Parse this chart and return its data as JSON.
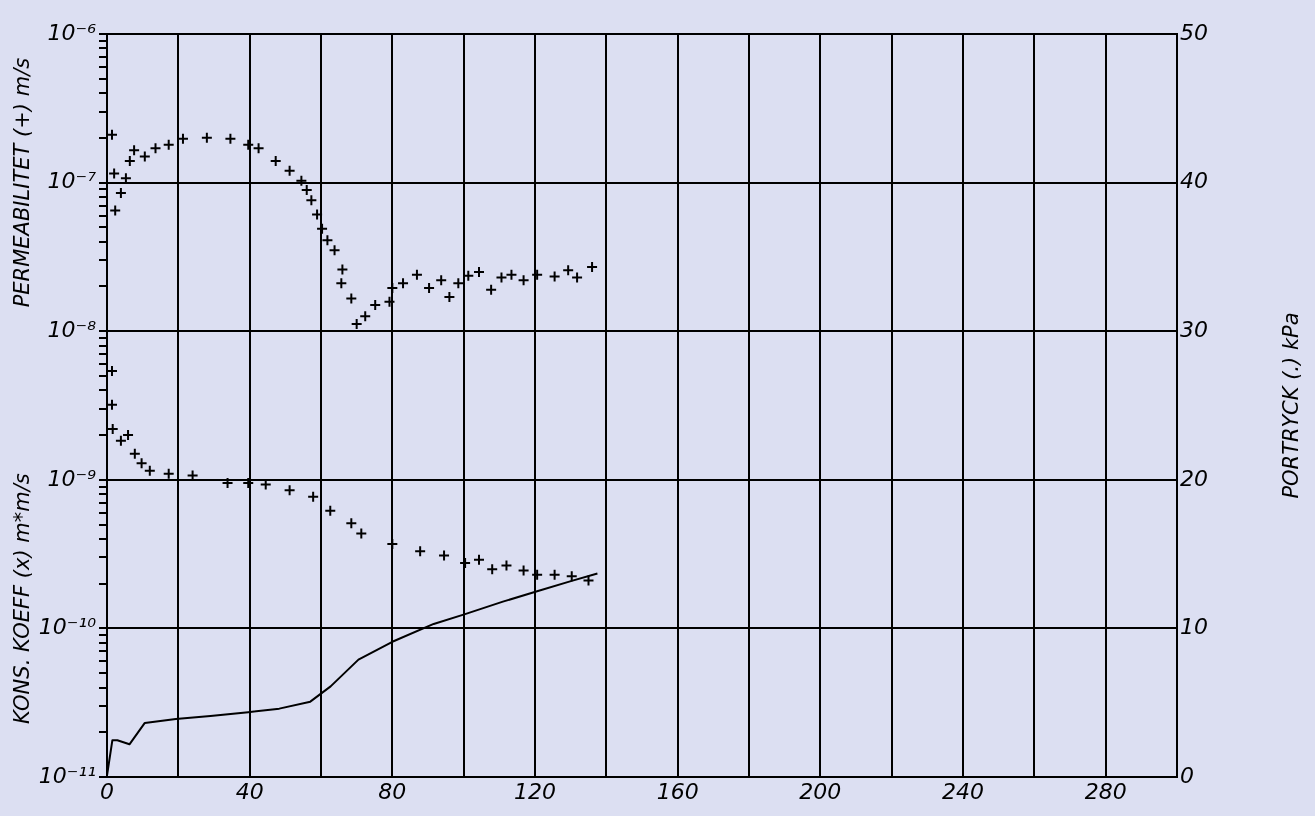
{
  "chart_data": {
    "type": "scatter",
    "ylabel": "KONS. KOEFF (x) m*m/s",
    "y2label": "PORTRYCK (.) kPa",
    "annotations": [
      "PERMEABILITET (+) m/s"
    ],
    "log": "y",
    "grid": true,
    "marker": "cross",
    "xlim": [
      0,
      300
    ],
    "xticks": [
      0,
      {
        "value": 20,
        "label": null
      },
      40,
      {
        "value": 60,
        "label": null
      },
      80,
      {
        "value": 100,
        "label": null
      },
      120,
      {
        "value": 140,
        "label": null
      },
      160,
      {
        "value": 180,
        "label": null
      },
      200,
      {
        "value": 220,
        "label": null
      },
      240,
      {
        "value": 260,
        "label": null
      },
      280,
      {
        "value": 300,
        "label": null
      }
    ],
    "ylim": [
      1e-11,
      1e-06
    ],
    "yticks": [
      {
        "value": 1e-11,
        "label": "10⁻¹¹"
      },
      {
        "value": 2e-11,
        "label": null
      },
      {
        "value": 3e-11,
        "label": null
      },
      {
        "value": 4e-11,
        "label": null
      },
      {
        "value": 5e-11,
        "label": null
      },
      {
        "value": 6e-11,
        "label": null
      },
      {
        "value": 7e-11,
        "label": null
      },
      {
        "value": 8e-11,
        "label": null
      },
      {
        "value": 9e-11,
        "label": null
      },
      {
        "value": 1e-10,
        "label": "10⁻¹⁰"
      },
      {
        "value": 2e-10,
        "label": null
      },
      {
        "value": 3e-10,
        "label": null
      },
      {
        "value": 4e-10,
        "label": null
      },
      {
        "value": 5e-10,
        "label": null
      },
      {
        "value": 6e-10,
        "label": null
      },
      {
        "value": 7e-10,
        "label": null
      },
      {
        "value": 8e-10,
        "label": null
      },
      {
        "value": 9e-10,
        "label": null
      },
      {
        "value": 1e-09,
        "label": "10⁻⁹"
      },
      {
        "value": 2e-09,
        "label": null
      },
      {
        "value": 3e-09,
        "label": null
      },
      {
        "value": 4e-09,
        "label": null
      },
      {
        "value": 5e-09,
        "label": null
      },
      {
        "value": 6e-09,
        "label": null
      },
      {
        "value": 7e-09,
        "label": null
      },
      {
        "value": 8e-09,
        "label": null
      },
      {
        "value": 9e-09,
        "label": null
      },
      {
        "value": 1e-08,
        "label": "10⁻⁸"
      },
      {
        "value": 2e-08,
        "label": null
      },
      {
        "value": 3e-08,
        "label": null
      },
      {
        "value": 4e-08,
        "label": null
      },
      {
        "value": 5e-08,
        "label": null
      },
      {
        "value": 6e-08,
        "label": null
      },
      {
        "value": 7e-08,
        "label": null
      },
      {
        "value": 8e-08,
        "label": null
      },
      {
        "value": 9e-08,
        "label": null
      },
      {
        "value": 1e-07,
        "label": "10⁻⁷"
      },
      {
        "value": 2e-07,
        "label": null
      },
      {
        "value": 3e-07,
        "label": null
      },
      {
        "value": 4e-07,
        "label": null
      },
      {
        "value": 5e-07,
        "label": null
      },
      {
        "value": 6e-07,
        "label": null
      },
      {
        "value": 7e-07,
        "label": null
      },
      {
        "value": 8e-07,
        "label": null
      },
      {
        "value": 9e-07,
        "label": null
      },
      {
        "value": 1e-06,
        "label": "10⁻⁶"
      }
    ],
    "y2lim": [
      0,
      50
    ],
    "y2ticks": [
      0,
      10,
      20,
      30,
      40,
      50
    ],
    "series": [
      {
        "type": "scatter",
        "color": "#000000",
        "x": [
          1.4,
          2,
          2.3,
          3.9,
          5.3,
          6.4,
          7.6,
          10.6,
          13.6,
          17.3,
          21.3,
          28,
          34.6,
          39.6,
          42.5,
          47.3,
          51.2,
          54.5,
          56,
          57.3,
          58.9,
          60.3,
          61.8,
          63.8,
          66,
          65.7,
          68.5,
          70,
          72.4,
          75.2,
          79.2,
          80,
          83,
          86.9,
          90.3,
          93.7,
          96,
          98.5,
          101.3,
          104.3,
          107.7,
          110.6,
          113.4,
          116.8,
          120.6,
          125.5,
          129.3,
          131.8,
          136
        ],
        "values": [
          2.1e-07,
          1.15e-07,
          6.5e-08,
          8.5e-08,
          1.07e-07,
          1.4e-07,
          1.65e-07,
          1.5e-07,
          1.7e-07,
          1.8e-07,
          1.97e-07,
          2e-07,
          1.97e-07,
          1.8e-07,
          1.7e-07,
          1.4e-07,
          1.2e-07,
          1.03e-07,
          8.9e-08,
          7.6e-08,
          6.1e-08,
          4.9e-08,
          4.1e-08,
          3.5e-08,
          2.6e-08,
          2.1e-08,
          1.66e-08,
          1.12e-08,
          1.26e-08,
          1.5e-08,
          1.58e-08,
          1.95e-08,
          2.1e-08,
          2.4e-08,
          1.95e-08,
          2.2e-08,
          1.7e-08,
          2.1e-08,
          2.36e-08,
          2.5e-08,
          1.9e-08,
          2.3e-08,
          2.4e-08,
          2.2e-08,
          2.4e-08,
          2.33e-08,
          2.57e-08,
          2.3e-08,
          2.7e-08
        ]
      },
      {
        "type": "scatter",
        "color": "#000000",
        "x": [
          1.4,
          1.4,
          1.6,
          3.9,
          5.9,
          7.8,
          9.7,
          12,
          17.3,
          24,
          33.8,
          39.6,
          44.5,
          51.2,
          57.8,
          62.6,
          68.5,
          71.3,
          80,
          87.8,
          94.5,
          100.4,
          104.3,
          108,
          112,
          116.8,
          120.6,
          125.5,
          130.3,
          135
        ],
        "values": [
          5.4e-09,
          3.2e-09,
          2.2e-09,
          1.83e-09,
          2e-09,
          1.5e-09,
          1.29e-09,
          1.15e-09,
          1.1e-09,
          1.07e-09,
          9.5e-10,
          9.5e-10,
          9.3e-10,
          8.5e-10,
          7.7e-10,
          6.2e-10,
          5.1e-10,
          4.35e-10,
          3.7e-10,
          3.3e-10,
          3.1e-10,
          2.75e-10,
          2.9e-10,
          2.5e-10,
          2.65e-10,
          2.45e-10,
          2.3e-10,
          2.3e-10,
          2.24e-10,
          2.1e-10
        ]
      },
      {
        "type": "line",
        "axis": "y2",
        "marker": "none",
        "color": "#000000",
        "x": [
          0,
          1.5,
          2.9,
          6.3,
          10.6,
          19.3,
          29,
          39.6,
          48.3,
          57,
          62.7,
          70.5,
          80,
          91.6,
          100.4,
          111,
          120.6,
          130.3,
          137.5
        ],
        "values": [
          0.1,
          2.47,
          2.47,
          2.2,
          3.64,
          3.9,
          4.1,
          4.36,
          4.6,
          5.07,
          6.1,
          7.9,
          9.1,
          10.3,
          10.96,
          11.8,
          12.5,
          13.2,
          13.7
        ]
      }
    ]
  }
}
